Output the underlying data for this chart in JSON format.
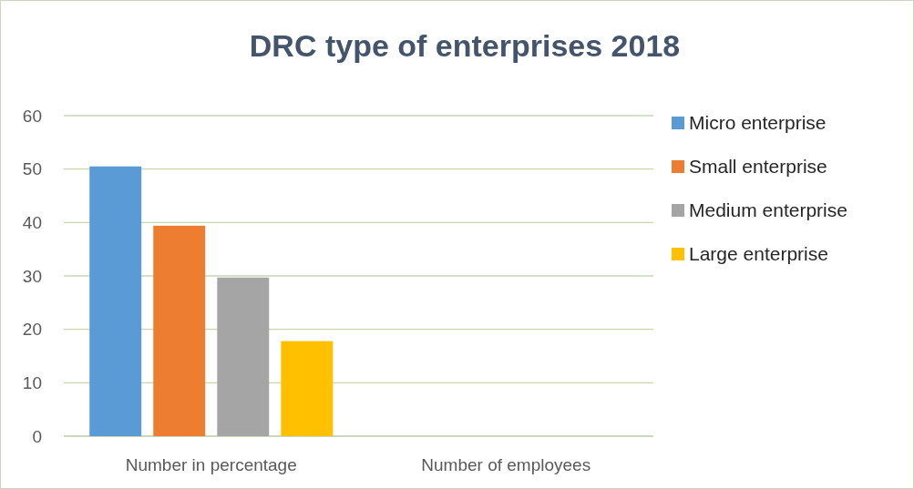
{
  "chart_data": {
    "type": "bar",
    "title": "DRC type of enterprises 2018",
    "categories": [
      "Number in percentage",
      "Number of employees"
    ],
    "series": [
      {
        "name": "Micro enterprise",
        "color": "#5b9bd5",
        "values": [
          50.5,
          null
        ]
      },
      {
        "name": "Small enterprise",
        "color": "#ed7d31",
        "values": [
          39.4,
          null
        ]
      },
      {
        "name": "Medium enterprise",
        "color": "#a5a5a5",
        "values": [
          29.7,
          null
        ]
      },
      {
        "name": "Large enterprise",
        "color": "#ffc000",
        "values": [
          17.8,
          null
        ]
      }
    ],
    "ylim": [
      0,
      60
    ],
    "yticks": [
      0,
      10,
      20,
      30,
      40,
      50,
      60
    ],
    "grid": "y",
    "legend": "right"
  }
}
